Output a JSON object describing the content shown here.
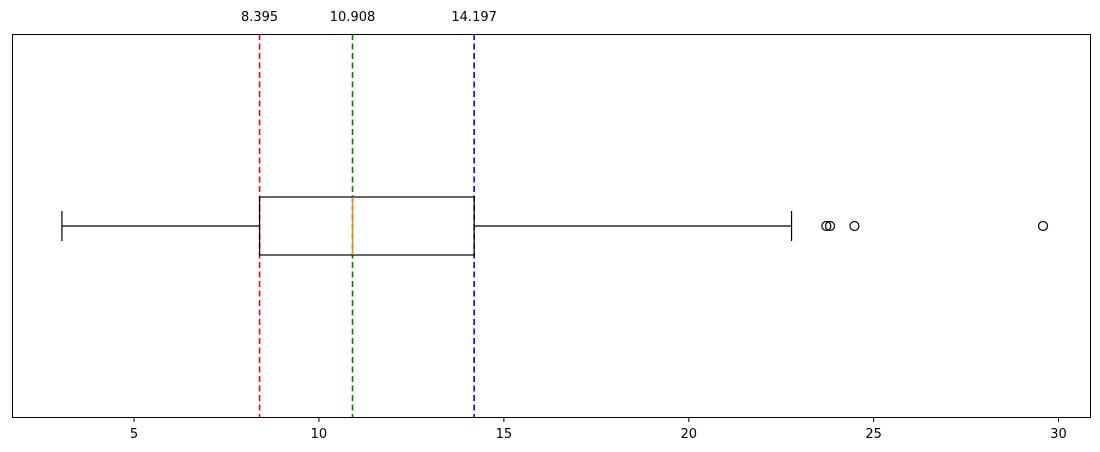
{
  "chart_data": {
    "type": "boxplot",
    "orientation": "horizontal",
    "title": "",
    "xlabel": "",
    "ylabel": "",
    "xlim": [
      1.7,
      30.85
    ],
    "xticks": [
      5,
      10,
      15,
      20,
      25,
      30
    ],
    "xtick_labels": [
      "5",
      "10",
      "15",
      "20",
      "25",
      "30"
    ],
    "show_yticks": false,
    "grid": false,
    "box": {
      "whisker_low": 3.05,
      "q1": 8.395,
      "median": 10.908,
      "q3": 14.197,
      "whisker_high": 22.78,
      "outliers": [
        23.72,
        23.82,
        24.48,
        29.58
      ],
      "box_edge_color": "#000000",
      "median_color": "#ff7f0e"
    },
    "reference_lines": [
      {
        "value": 8.395,
        "label": "8.395",
        "color": "#ff0000",
        "style": "dashed"
      },
      {
        "value": 10.908,
        "label": "10.908",
        "color": "#008000",
        "style": "dashed"
      },
      {
        "value": 14.197,
        "label": "14.197",
        "color": "#0000ff",
        "style": "dashed"
      }
    ]
  }
}
